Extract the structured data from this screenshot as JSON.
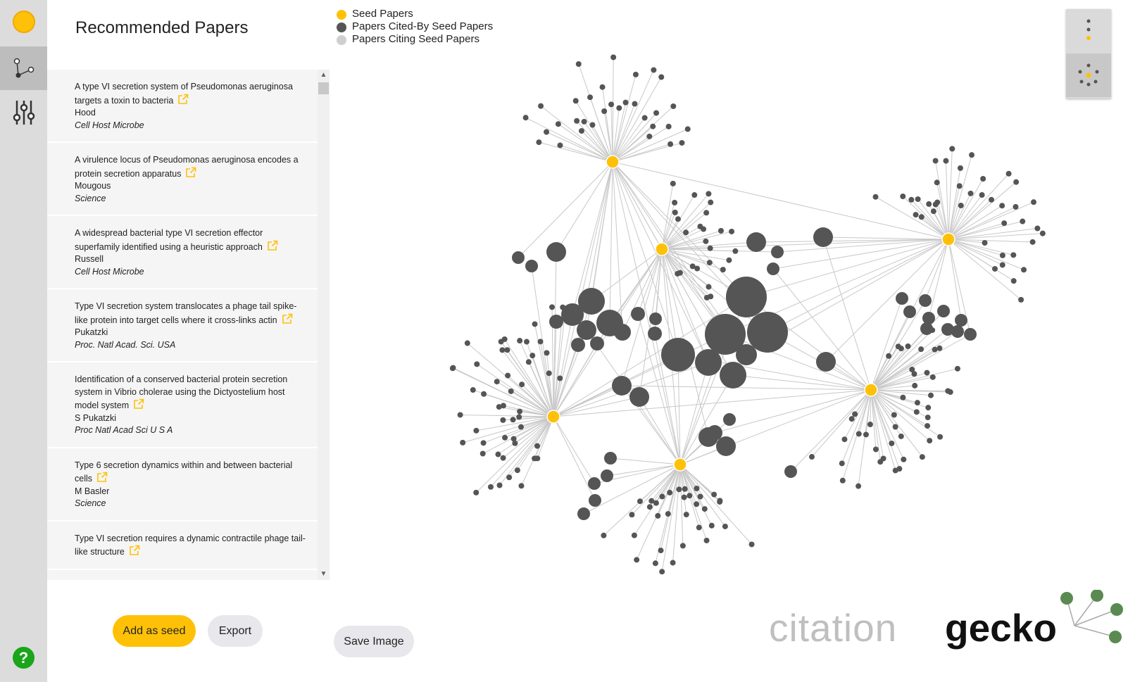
{
  "panel": {
    "title": "Recommended Papers"
  },
  "papers": [
    {
      "title": "A type VI secretion system of Pseudomonas aeruginosa targets a toxin to bacteria",
      "author": "Hood",
      "journal": "Cell Host Microbe"
    },
    {
      "title": "A virulence locus of Pseudomonas aeruginosa encodes a protein secretion apparatus",
      "author": "Mougous",
      "journal": "Science"
    },
    {
      "title": "A widespread bacterial type VI secretion effector superfamily identified using a heuristic approach",
      "author": "Russell",
      "journal": "Cell Host Microbe"
    },
    {
      "title": "Type VI secretion system translocates a phage tail spike-like protein into target cells where it cross-links actin",
      "author": "Pukatzki",
      "journal": "Proc. Natl Acad. Sci. USA"
    },
    {
      "title": "Identification of a conserved bacterial protein secretion system in Vibrio cholerae using the Dictyostelium host model system",
      "author": "S Pukatzki",
      "journal": "Proc Natl Acad Sci U S A"
    },
    {
      "title": "Type 6 secretion dynamics within and between bacterial cells",
      "author": "M Basler",
      "journal": "Science"
    },
    {
      "title": "Type VI secretion requires a dynamic contractile phage tail-like structure",
      "author": "",
      "journal": ""
    }
  ],
  "buttons": {
    "add_seed": "Add as seed",
    "export": "Export",
    "save_image": "Save Image"
  },
  "legend": {
    "seed": "Seed Papers",
    "cited_by": "Papers Cited-By Seed Papers",
    "citing": "Papers Citing Seed Papers"
  },
  "logo": {
    "part1": "citation",
    "part2": "gecko"
  },
  "colors": {
    "seed": "#ffc107",
    "node": "#555555",
    "edge": "#c8c8c8",
    "accent": "#ffc107",
    "help": "#1aa51a",
    "logo_dots": "#5a8a52"
  },
  "icons": {
    "help": "?"
  }
}
